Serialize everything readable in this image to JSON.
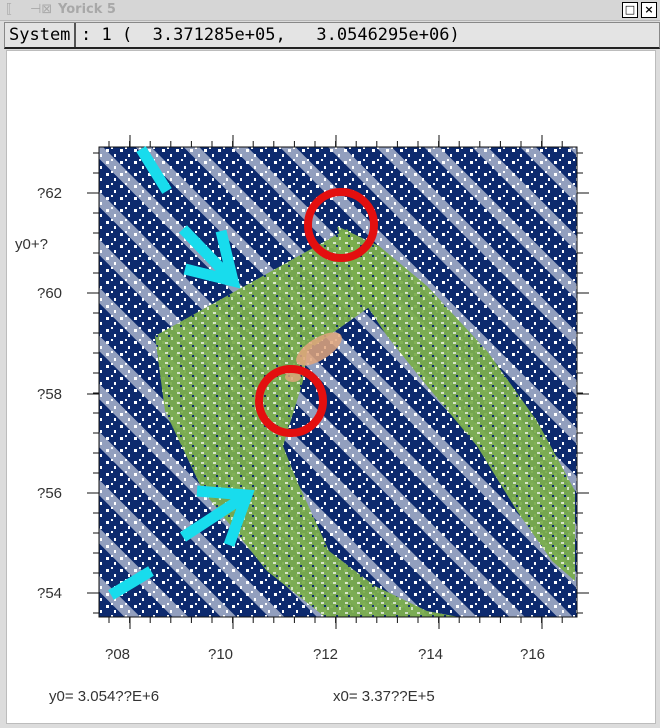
{
  "window": {
    "title": "Yorick 5",
    "icons": [
      "menu-icon",
      "pin-icon",
      "maximize-icon",
      "close-icon"
    ]
  },
  "statusbar": {
    "menu_label": "System",
    "coords_text": ": 1 (  3.371285e+05,   3.0546295e+06)"
  },
  "plot": {
    "y_axis_title": "y0+?",
    "y_ticks": [
      "?62",
      "?60",
      "?58",
      "?56",
      "?54"
    ],
    "x_ticks": [
      "?08",
      "?10",
      "?12",
      "?14",
      "?16"
    ],
    "footer_left": "y0= 3.054??E+6",
    "footer_right": "x0= 3.37??E+5",
    "colors": {
      "background_pixels": "#0d2a6e",
      "strip_pixels": "#7aad4d",
      "hot_pixels": "#e2a67c",
      "annotation_arrows": "#18dced",
      "annotation_circles": "#e30f0f"
    }
  }
}
